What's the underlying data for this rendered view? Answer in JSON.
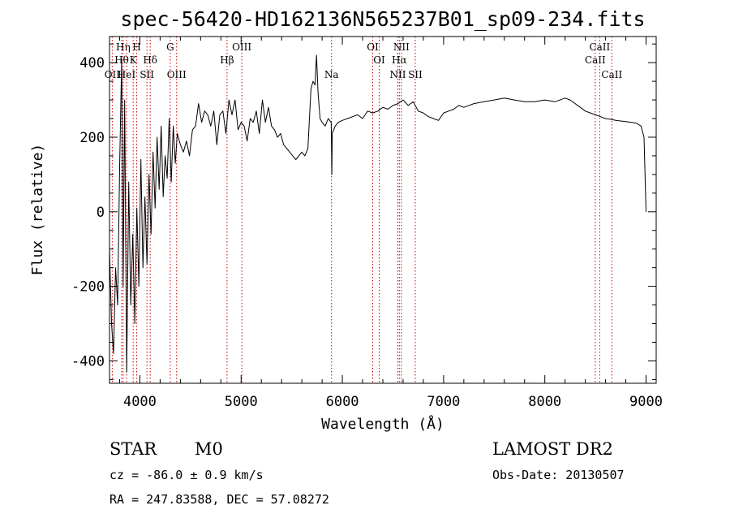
{
  "title": "spec-56420-HD162136N565237B01_sp09-234.fits",
  "footer": {
    "class_label": "STAR",
    "subclass": "M0",
    "survey": "LAMOST DR2",
    "cz": "cz = -86.0 ± 0.9 km/s",
    "obs_date": "Obs-Date: 20130507",
    "radec": "RA = 247.83588, DEC =  57.08272"
  },
  "chart_data": {
    "type": "line",
    "title": "spec-56420-HD162136N565237B01_sp09-234.fits",
    "xlabel": "Wavelength (Å)",
    "ylabel": "Flux (relative)",
    "xlim": [
      3700,
      9100
    ],
    "ylim": [
      -460,
      470
    ],
    "x_ticks": [
      4000,
      5000,
      6000,
      7000,
      8000,
      9000
    ],
    "y_ticks": [
      -400,
      -200,
      0,
      200,
      400
    ],
    "line_color": "#000000",
    "marker_color": "#cc0000",
    "series": [
      {
        "x": [
          3700,
          3720,
          3740,
          3760,
          3780,
          3800,
          3820,
          3835,
          3850,
          3870,
          3890,
          3910,
          3930,
          3950,
          3970,
          3990,
          4010,
          4030,
          4050,
          4070,
          4090,
          4110,
          4130,
          4150,
          4170,
          4190,
          4210,
          4230,
          4250,
          4270,
          4290,
          4310,
          4330,
          4350,
          4370,
          4400,
          4430,
          4460,
          4490,
          4520,
          4550,
          4580,
          4610,
          4640,
          4670,
          4700,
          4730,
          4760,
          4790,
          4820,
          4850,
          4880,
          4910,
          4940,
          4970,
          5000,
          5030,
          5060,
          5090,
          5120,
          5150,
          5180,
          5210,
          5240,
          5270,
          5300,
          5330,
          5360,
          5390,
          5420,
          5450,
          5480,
          5510,
          5540,
          5570,
          5600,
          5630,
          5660,
          5690,
          5710,
          5730,
          5745,
          5760,
          5780,
          5800,
          5830,
          5860,
          5890,
          5893,
          5896,
          5900,
          5930,
          5960,
          6000,
          6050,
          6100,
          6150,
          6200,
          6250,
          6300,
          6350,
          6400,
          6450,
          6500,
          6550,
          6600,
          6650,
          6700,
          6750,
          6800,
          6850,
          6900,
          6950,
          7000,
          7050,
          7100,
          7150,
          7200,
          7300,
          7400,
          7500,
          7600,
          7700,
          7800,
          7900,
          8000,
          8100,
          8200,
          8250,
          8300,
          8350,
          8400,
          8450,
          8500,
          8550,
          8600,
          8650,
          8700,
          8800,
          8900,
          8950,
          8980,
          9000
        ],
        "y": [
          -100,
          -300,
          -380,
          -150,
          -250,
          120,
          410,
          -200,
          300,
          -430,
          80,
          -250,
          -60,
          -300,
          10,
          -200,
          140,
          -150,
          40,
          -140,
          100,
          -60,
          160,
          10,
          200,
          60,
          230,
          40,
          150,
          90,
          250,
          80,
          230,
          130,
          210,
          180,
          160,
          190,
          150,
          220,
          230,
          290,
          240,
          270,
          260,
          230,
          270,
          180,
          260,
          270,
          210,
          300,
          260,
          300,
          220,
          240,
          230,
          190,
          250,
          240,
          270,
          210,
          300,
          240,
          280,
          230,
          220,
          200,
          210,
          180,
          170,
          160,
          150,
          140,
          150,
          160,
          150,
          170,
          330,
          350,
          340,
          420,
          320,
          250,
          240,
          230,
          250,
          240,
          180,
          100,
          210,
          230,
          240,
          245,
          250,
          255,
          260,
          250,
          270,
          265,
          270,
          280,
          275,
          285,
          290,
          300,
          285,
          295,
          270,
          265,
          255,
          250,
          245,
          265,
          270,
          275,
          285,
          280,
          290,
          295,
          300,
          305,
          300,
          295,
          295,
          300,
          295,
          305,
          300,
          290,
          280,
          270,
          265,
          260,
          255,
          250,
          248,
          245,
          242,
          238,
          230,
          200,
          0
        ]
      }
    ],
    "line_markers": [
      {
        "wl": 3727,
        "label": "OII",
        "row": 3
      },
      {
        "wl": 3820,
        "label": "Hθ",
        "row": 2
      },
      {
        "wl": 3835,
        "label": "Hη",
        "row": 1
      },
      {
        "wl": 3869,
        "label": "HeI",
        "row": 3
      },
      {
        "wl": 3934,
        "label": "K",
        "row": 2
      },
      {
        "wl": 3969,
        "label": "H",
        "row": 1
      },
      {
        "wl": 4070,
        "label": "SII",
        "row": 3
      },
      {
        "wl": 4102,
        "label": "Hδ",
        "row": 2
      },
      {
        "wl": 4300,
        "label": "G",
        "row": 1
      },
      {
        "wl": 4363,
        "label": "OIII",
        "row": 3
      },
      {
        "wl": 4861,
        "label": "Hβ",
        "row": 2
      },
      {
        "wl": 5007,
        "label": "OIII",
        "row": 1
      },
      {
        "wl": 5893,
        "label": "Na",
        "row": 3
      },
      {
        "wl": 6300,
        "label": "OI",
        "row": 1
      },
      {
        "wl": 6364,
        "label": "OI",
        "row": 2
      },
      {
        "wl": 6548,
        "label": "NII",
        "row": 3
      },
      {
        "wl": 6563,
        "label": "Hα",
        "row": 2
      },
      {
        "wl": 6583,
        "label": "NII",
        "row": 1
      },
      {
        "wl": 6720,
        "label": "SII",
        "row": 3
      },
      {
        "wl": 8498,
        "label": "CaII",
        "row": 2
      },
      {
        "wl": 8542,
        "label": "CaII",
        "row": 1
      },
      {
        "wl": 8662,
        "label": "CaII",
        "row": 3
      }
    ]
  }
}
